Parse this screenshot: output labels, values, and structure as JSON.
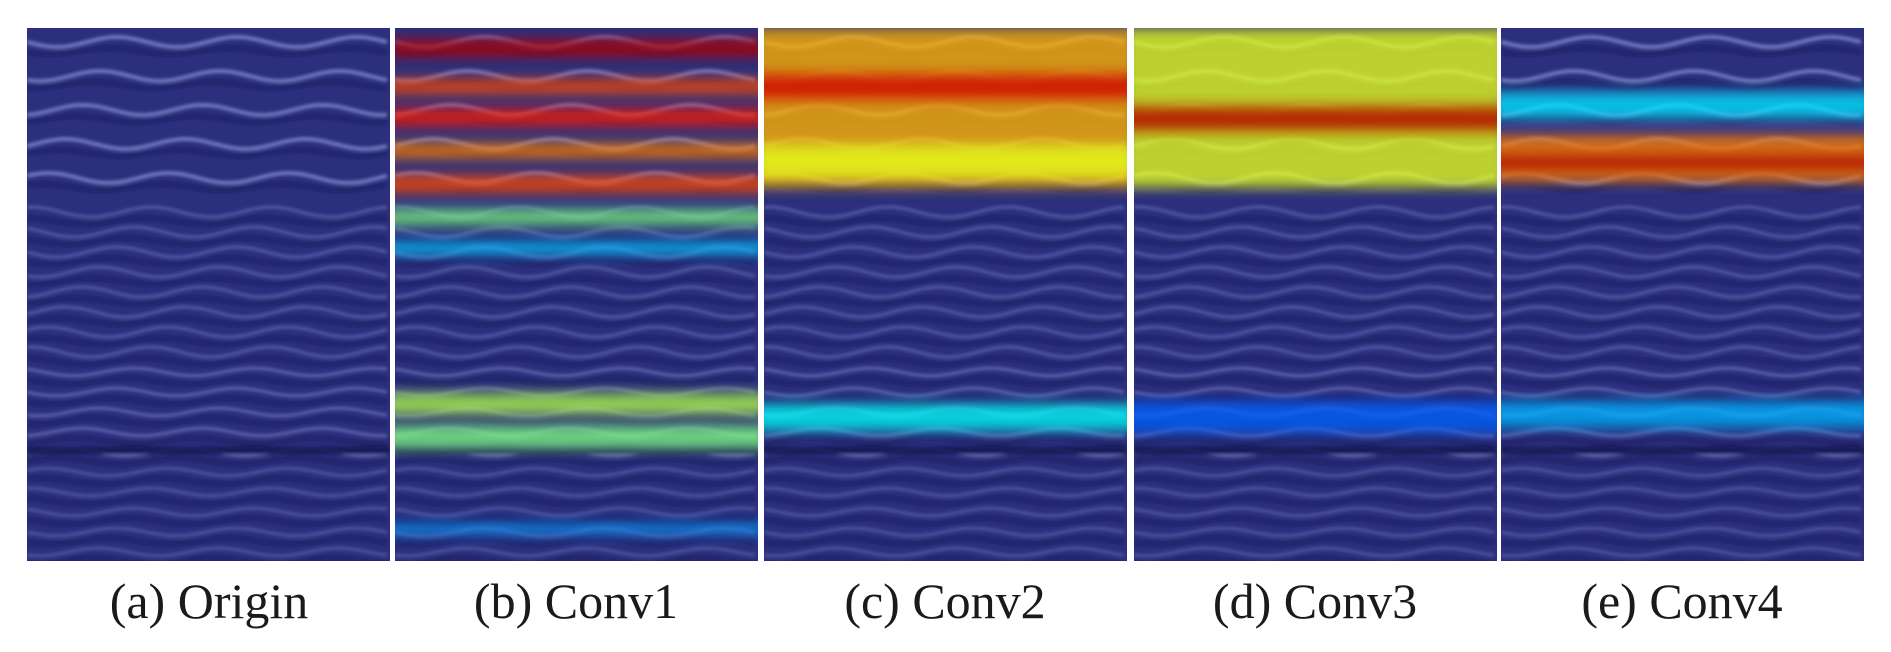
{
  "figure": {
    "panels": [
      {
        "caption": "(a) Origin",
        "heat_bands": []
      },
      {
        "caption": "(b) Conv1",
        "heat_bands": [
          {
            "y": 0.02,
            "h": 0.035,
            "level": 0.95
          },
          {
            "y": 0.095,
            "h": 0.03,
            "level": 0.8
          },
          {
            "y": 0.15,
            "h": 0.035,
            "level": 0.85
          },
          {
            "y": 0.215,
            "h": 0.03,
            "level": 0.75
          },
          {
            "y": 0.275,
            "h": 0.035,
            "level": 0.8
          },
          {
            "y": 0.34,
            "h": 0.03,
            "level": 0.5
          },
          {
            "y": 0.4,
            "h": 0.025,
            "level": 0.32
          },
          {
            "y": 0.685,
            "h": 0.04,
            "level": 0.55
          },
          {
            "y": 0.745,
            "h": 0.045,
            "level": 0.5
          },
          {
            "y": 0.93,
            "h": 0.02,
            "level": 0.28
          }
        ]
      },
      {
        "caption": "(c) Conv2",
        "heat_bands": [
          {
            "y": 0.0,
            "h": 0.3,
            "level": 0.7
          },
          {
            "y": 0.08,
            "h": 0.06,
            "level": 0.92
          },
          {
            "y": 0.22,
            "h": 0.06,
            "level": 0.6
          },
          {
            "y": 0.705,
            "h": 0.05,
            "level": 0.38
          }
        ]
      },
      {
        "caption": "(d) Conv3",
        "heat_bands": [
          {
            "y": 0.0,
            "h": 0.3,
            "level": 0.6
          },
          {
            "y": 0.14,
            "h": 0.06,
            "level": 0.95
          },
          {
            "y": 0.7,
            "h": 0.06,
            "level": 0.22
          }
        ]
      },
      {
        "caption": "(e) Conv4",
        "heat_bands": [
          {
            "y": 0.12,
            "h": 0.05,
            "level": 0.35
          },
          {
            "y": 0.2,
            "h": 0.09,
            "level": 0.75
          },
          {
            "y": 0.235,
            "h": 0.035,
            "level": 0.95
          },
          {
            "y": 0.7,
            "h": 0.05,
            "level": 0.3
          }
        ]
      }
    ],
    "colors": {
      "background": "#2b2f7c",
      "stripe_light": "#8a92d6",
      "stripe_dark": "#141a55",
      "text": "#1a1a1a"
    }
  }
}
